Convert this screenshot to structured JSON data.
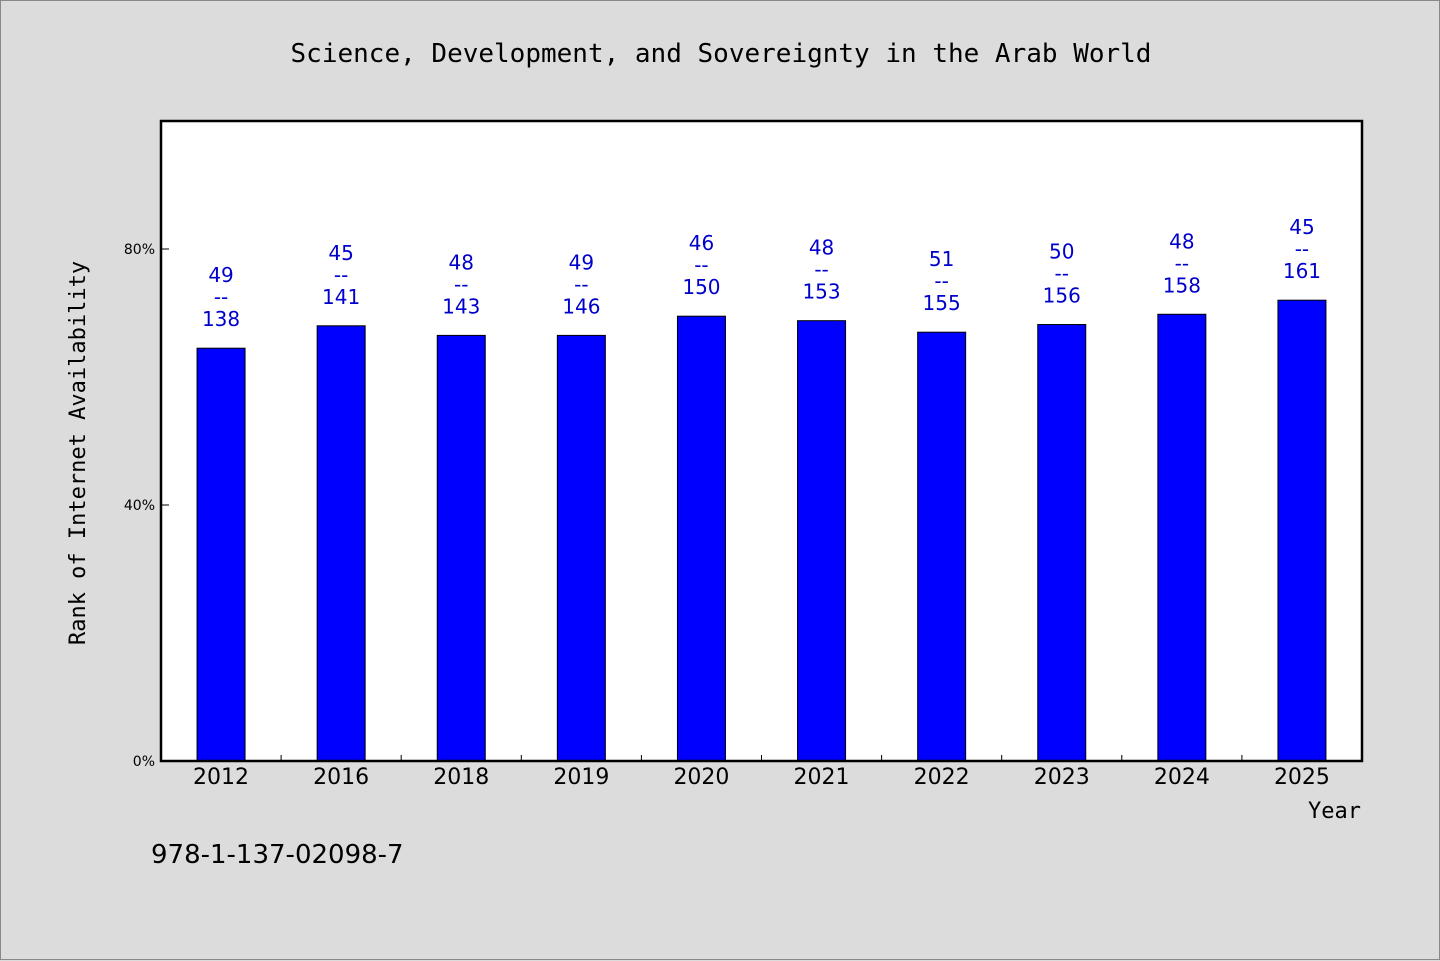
{
  "footer": {
    "isbn": "978-1-137-02098-7"
  },
  "chart_data": {
    "type": "bar",
    "title": "Science, Development, and Sovereignty in the Arab World",
    "xlabel": "Year",
    "ylabel": "Rank of Internet Availability",
    "ylim": [
      0,
      100
    ],
    "yticks": [
      {
        "value": 0,
        "label": "0%"
      },
      {
        "value": 40,
        "label": "40%"
      },
      {
        "value": 80,
        "label": "80%"
      }
    ],
    "grid": false,
    "legend": "none",
    "categories": [
      "2012",
      "2016",
      "2018",
      "2019",
      "2020",
      "2021",
      "2022",
      "2023",
      "2024",
      "2025"
    ],
    "values": [
      64.5,
      68.0,
      66.5,
      66.5,
      69.5,
      68.8,
      67.0,
      68.2,
      69.8,
      72.0
    ],
    "data_labels": [
      {
        "top": "49",
        "sep": "--",
        "bottom": "138"
      },
      {
        "top": "45",
        "sep": "--",
        "bottom": "141"
      },
      {
        "top": "48",
        "sep": "--",
        "bottom": "143"
      },
      {
        "top": "49",
        "sep": "--",
        "bottom": "146"
      },
      {
        "top": "46",
        "sep": "--",
        "bottom": "150"
      },
      {
        "top": "48",
        "sep": "--",
        "bottom": "153"
      },
      {
        "top": "51",
        "sep": "--",
        "bottom": "155"
      },
      {
        "top": "50",
        "sep": "--",
        "bottom": "156"
      },
      {
        "top": "48",
        "sep": "--",
        "bottom": "158"
      },
      {
        "top": "45",
        "sep": "--",
        "bottom": "161"
      }
    ],
    "colors": {
      "bar": "#0000ff",
      "label": "#0000cc",
      "plot_bg": "#ffffff",
      "page_bg": "#dcdcdc"
    }
  }
}
